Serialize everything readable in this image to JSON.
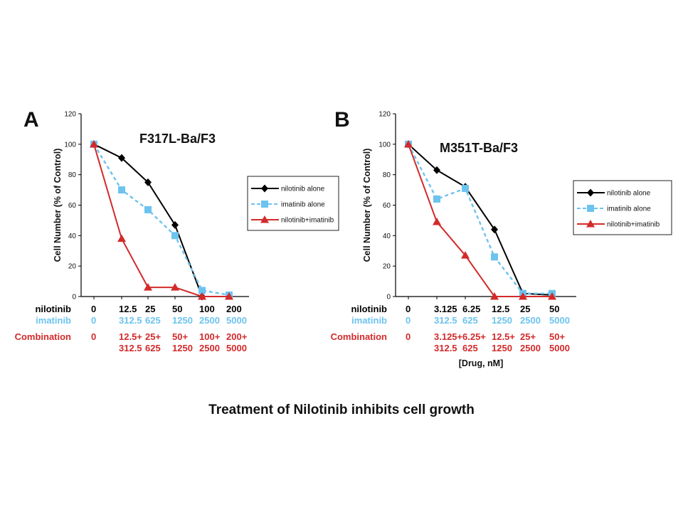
{
  "slide": {
    "caption": "Treatment of Nilotinib inhibits cell growth"
  },
  "colors": {
    "nilotinib": "#000000",
    "imatinib": "#6cc3ee",
    "combination": "#d32a2a",
    "axis": "#000000"
  },
  "chart_data": [
    {
      "type": "line",
      "panel_letter": "A",
      "title": "F317L-Ba/F3",
      "ylabel": "Cell Number (% of Control)",
      "xlabel": "",
      "ylim": [
        0,
        120
      ],
      "yticks": [
        0,
        20,
        40,
        60,
        80,
        100,
        120
      ],
      "grid": false,
      "legend_position": "right",
      "x": [
        0,
        1,
        2,
        3,
        4,
        5
      ],
      "series": [
        {
          "name": "nilotinib alone",
          "marker": "diamond",
          "dash": "solid",
          "values": [
            100,
            91,
            75,
            47,
            0,
            null
          ]
        },
        {
          "name": "imatinib alone",
          "marker": "square",
          "dash": "dashed",
          "values": [
            100,
            70,
            57,
            40,
            4,
            1
          ]
        },
        {
          "name": "nilotinib+imatinib",
          "marker": "triangle",
          "dash": "solid",
          "values": [
            100,
            38,
            6,
            6,
            0,
            0
          ]
        }
      ],
      "dose_rows": [
        {
          "label": "nilotinib",
          "color_key": "nilotinib",
          "cells": [
            [
              "0"
            ],
            [
              "12.5"
            ],
            [
              "25"
            ],
            [
              "50"
            ],
            [
              "100"
            ],
            [
              "200"
            ]
          ]
        },
        {
          "label": "imatinib",
          "color_key": "imatinib",
          "cells": [
            [
              "0"
            ],
            [
              "312.5"
            ],
            [
              "625"
            ],
            [
              "1250"
            ],
            [
              "2500"
            ],
            [
              "5000"
            ]
          ]
        },
        {
          "label": "Combination",
          "color_key": "combination",
          "cells": [
            [
              "0"
            ],
            [
              "12.5+",
              "312.5"
            ],
            [
              "25+",
              "625"
            ],
            [
              "50+",
              "1250"
            ],
            [
              "100+",
              "2500"
            ],
            [
              "200+",
              "5000"
            ]
          ]
        }
      ],
      "footer_label": ""
    },
    {
      "type": "line",
      "panel_letter": "B",
      "title": "M351T-Ba/F3",
      "ylabel": "Cell Number (% of Control)",
      "xlabel": "[Drug, nM]",
      "ylim": [
        0,
        120
      ],
      "yticks": [
        0,
        20,
        40,
        60,
        80,
        100,
        120
      ],
      "grid": false,
      "legend_position": "right",
      "x": [
        0,
        1,
        2,
        3,
        4,
        5
      ],
      "series": [
        {
          "name": "nilotinib alone",
          "marker": "diamond",
          "dash": "solid",
          "values": [
            100,
            83,
            72,
            44,
            2,
            1
          ]
        },
        {
          "name": "imatinib alone",
          "marker": "square",
          "dash": "dashed",
          "values": [
            100,
            64,
            71,
            26,
            2,
            2
          ]
        },
        {
          "name": "nilotinib+imatinib",
          "marker": "triangle",
          "dash": "solid",
          "values": [
            100,
            49,
            27,
            0,
            0,
            0
          ]
        }
      ],
      "dose_rows": [
        {
          "label": "nilotinib",
          "color_key": "nilotinib",
          "cells": [
            [
              "0"
            ],
            [
              "3.125"
            ],
            [
              "6.25"
            ],
            [
              "12.5"
            ],
            [
              "25"
            ],
            [
              "50"
            ]
          ]
        },
        {
          "label": "imatinib",
          "color_key": "imatinib",
          "cells": [
            [
              "0"
            ],
            [
              "312.5"
            ],
            [
              "625"
            ],
            [
              "1250"
            ],
            [
              "2500"
            ],
            [
              "5000"
            ]
          ]
        },
        {
          "label": "Combination",
          "color_key": "combination",
          "cells": [
            [
              "0"
            ],
            [
              "3.125+",
              "312.5"
            ],
            [
              "6.25+",
              "625"
            ],
            [
              "12.5+",
              "1250"
            ],
            [
              "25+",
              "2500"
            ],
            [
              "50+",
              "5000"
            ]
          ]
        }
      ],
      "footer_label": "[Drug, nM]"
    }
  ]
}
